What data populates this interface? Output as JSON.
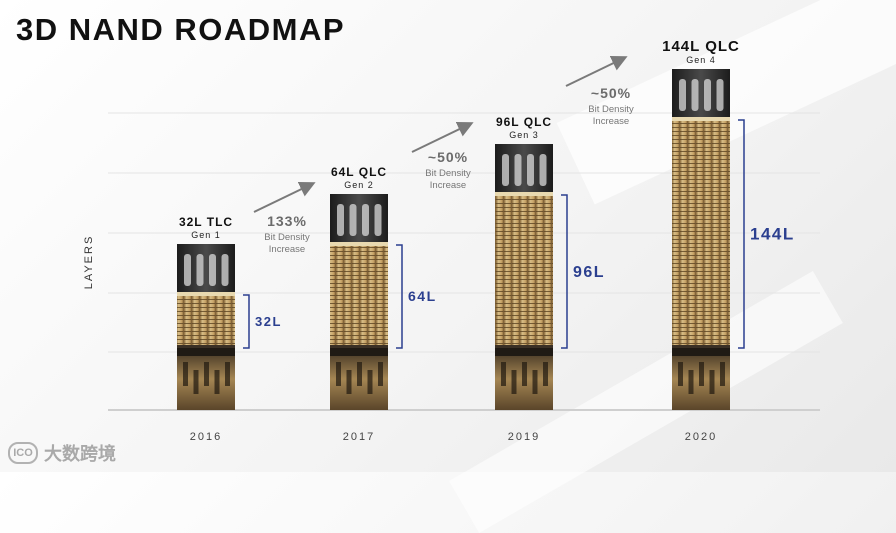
{
  "title": "3D NAND ROADMAP",
  "watermark": "大数跨境",
  "chart_data": {
    "type": "bar",
    "ylabel": "LAYERS",
    "categories": [
      "2016",
      "2017",
      "2019",
      "2020"
    ],
    "series": [
      {
        "values": [
          32,
          64,
          96,
          144
        ],
        "products": [
          "32L TLC",
          "64L QLC",
          "96L QLC",
          "144L QLC"
        ],
        "generations": [
          "Gen 1",
          "Gen 2",
          "Gen 3",
          "Gen 4"
        ],
        "data_labels": [
          "32L",
          "64L",
          "96L",
          "144L"
        ]
      }
    ],
    "annotations": [
      {
        "value": "133%",
        "text": "Bit Density Increase"
      },
      {
        "value": "~50%",
        "text": "Bit Density Increase"
      },
      {
        "value": "~50%",
        "text": "Bit Density Increase"
      }
    ],
    "grid": true,
    "colors": {
      "bracket": "#2b3f8f",
      "arrow": "#7a7a7a",
      "bar_dark": "#2a2a2a",
      "bar_gold": "#c9a86b"
    }
  }
}
